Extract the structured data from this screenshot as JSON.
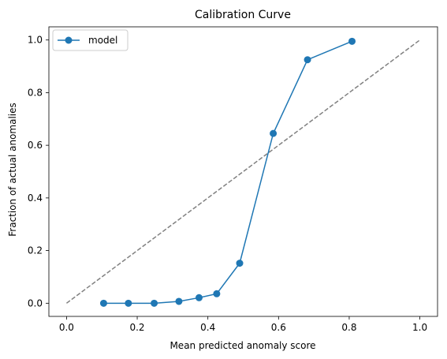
{
  "chart_data": {
    "type": "line",
    "title": "Calibration Curve",
    "xlabel": "Mean predicted anomaly score",
    "ylabel": "Fraction of actual anomalies",
    "xlim": [
      -0.05,
      1.05
    ],
    "ylim": [
      -0.05,
      1.05
    ],
    "xticks": [
      0.0,
      0.2,
      0.4,
      0.6,
      0.8,
      1.0
    ],
    "yticks": [
      0.0,
      0.2,
      0.4,
      0.6,
      0.8,
      1.0
    ],
    "tick_labels": [
      "0.0",
      "0.2",
      "0.4",
      "0.6",
      "0.8",
      "1.0"
    ],
    "grid": false,
    "legend_position": "top-left",
    "series": [
      {
        "name": "model",
        "color": "#1f77b4",
        "marker": "circle",
        "x": [
          0.105,
          0.175,
          0.248,
          0.318,
          0.375,
          0.425,
          0.49,
          0.585,
          0.682,
          0.808
        ],
        "y": [
          0.0,
          0.0,
          0.0,
          0.007,
          0.021,
          0.036,
          0.152,
          0.645,
          0.925,
          0.995
        ]
      }
    ],
    "reference_line": {
      "x": [
        0.0,
        1.0
      ],
      "y": [
        0.0,
        1.0
      ],
      "color": "#808080",
      "style": "dashed"
    }
  }
}
